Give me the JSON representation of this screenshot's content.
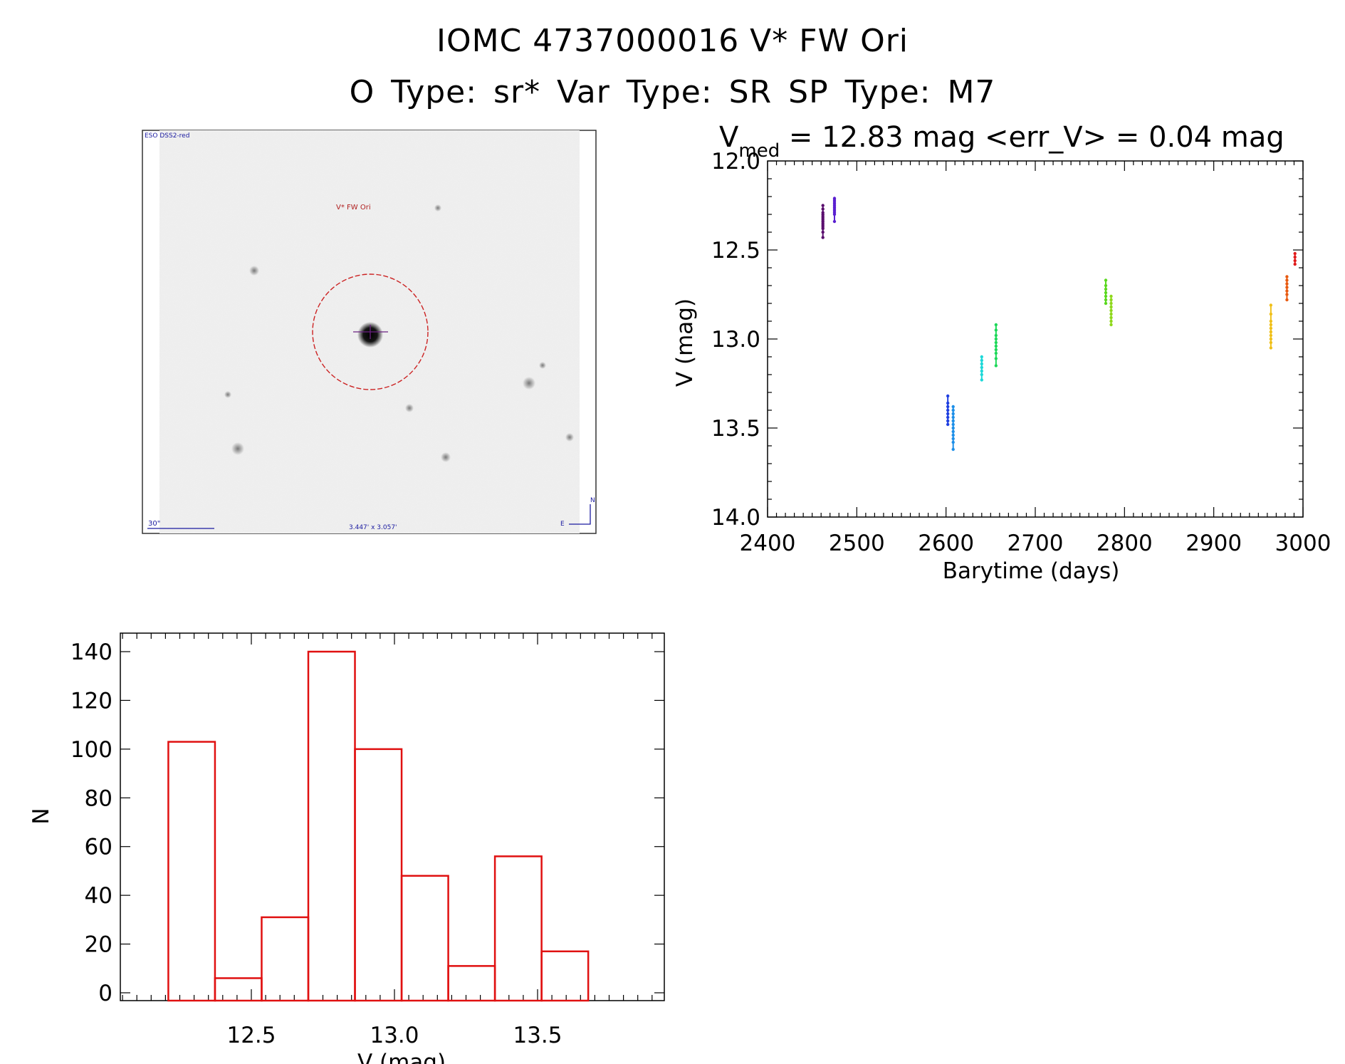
{
  "header": {
    "title_line1": "IOMC 4737000016    V* FW Ori",
    "title_line2": "O Type: sr*  Var Type: SR  SP Type: M7"
  },
  "finder": {
    "survey_label": "ESO DSS2-red",
    "object_label": "V* FW Ori",
    "scale_label": "30\"",
    "fov_label": "3.447' x 3.057'",
    "north_label": "N",
    "east_label": "E",
    "colors": {
      "circle": "#cc2222",
      "labels": "#1a1aa0",
      "object_label": "#b02020"
    }
  },
  "chart_data": [
    {
      "type": "scatter",
      "title_prefix": "V",
      "title_subscript": "med",
      "title_rest": " = 12.83 mag <err_V> = 0.04 mag",
      "xlabel": "Barytime (days)",
      "ylabel": "V (mag)",
      "xlim": [
        2400,
        3000
      ],
      "ylim": [
        14.0,
        12.0
      ],
      "xticks": [
        "2400",
        "2500",
        "2600",
        "2700",
        "2800",
        "2900",
        "3000"
      ],
      "yticks": [
        "12.0",
        "12.5",
        "13.0",
        "13.5",
        "14.0"
      ],
      "groups": [
        {
          "x": 2462,
          "y": [
            12.25,
            12.27,
            12.29,
            12.3,
            12.31,
            12.32,
            12.33,
            12.34,
            12.35,
            12.36,
            12.37,
            12.38,
            12.4,
            12.43
          ],
          "color": "#5a0f6e"
        },
        {
          "x": 2475,
          "y": [
            12.21,
            12.22,
            12.23,
            12.24,
            12.25,
            12.26,
            12.27,
            12.28,
            12.29,
            12.3,
            12.34
          ],
          "color": "#5a1fd0"
        },
        {
          "x": 2602,
          "y": [
            13.32,
            13.36,
            13.38,
            13.4,
            13.42,
            13.44,
            13.46,
            13.48
          ],
          "color": "#1f3fe0"
        },
        {
          "x": 2608,
          "y": [
            13.38,
            13.4,
            13.42,
            13.44,
            13.46,
            13.48,
            13.5,
            13.52,
            13.54,
            13.56,
            13.58,
            13.62
          ],
          "color": "#1d8fe8"
        },
        {
          "x": 2640,
          "y": [
            13.1,
            13.12,
            13.14,
            13.16,
            13.18,
            13.2,
            13.23
          ],
          "color": "#1ed8d8"
        },
        {
          "x": 2656,
          "y": [
            12.92,
            12.95,
            12.98,
            13.0,
            13.02,
            13.04,
            13.06,
            13.08,
            13.11,
            13.15
          ],
          "color": "#1fd85a"
        },
        {
          "x": 2779,
          "y": [
            12.67,
            12.7,
            12.72,
            12.74,
            12.76,
            12.78,
            12.8
          ],
          "color": "#5ad81f"
        },
        {
          "x": 2785,
          "y": [
            12.76,
            12.78,
            12.8,
            12.82,
            12.84,
            12.86,
            12.88,
            12.9,
            12.92
          ],
          "color": "#8ed81a"
        },
        {
          "x": 2964,
          "y": [
            12.81,
            12.86,
            12.9,
            12.92,
            12.94,
            12.96,
            12.98,
            13.0,
            13.02,
            13.05
          ],
          "color": "#f0c01a"
        },
        {
          "x": 2982,
          "y": [
            12.65,
            12.67,
            12.69,
            12.71,
            12.73,
            12.75,
            12.78
          ],
          "color": "#e85a10"
        },
        {
          "x": 2991,
          "y": [
            12.52,
            12.54,
            12.56,
            12.58
          ],
          "color": "#e01a1a"
        }
      ]
    },
    {
      "type": "bar",
      "xlabel": "V (mag)",
      "ylabel": "N",
      "xlim": [
        2.05,
        3.95
      ],
      "ylim": [
        -3,
        147
      ],
      "xtick_values": [
        12.5,
        13.0,
        13.5
      ],
      "xticks": [
        "12.5",
        "13.0",
        "13.5"
      ],
      "ytick_values": [
        0,
        20,
        40,
        60,
        80,
        100,
        120,
        140
      ],
      "yticks": [
        "0",
        "20",
        "40",
        "60",
        "80",
        "100",
        "120",
        "140"
      ],
      "bins": [
        {
          "x0": 12.21,
          "x1": 12.373,
          "count": 103
        },
        {
          "x0": 12.373,
          "x1": 12.536,
          "count": 6
        },
        {
          "x0": 12.536,
          "x1": 12.699,
          "count": 31
        },
        {
          "x0": 12.699,
          "x1": 12.862,
          "count": 140
        },
        {
          "x0": 12.862,
          "x1": 13.025,
          "count": 100
        },
        {
          "x0": 13.025,
          "x1": 13.188,
          "count": 48
        },
        {
          "x0": 13.188,
          "x1": 13.351,
          "count": 11
        },
        {
          "x0": 13.351,
          "x1": 13.514,
          "count": 56
        },
        {
          "x0": 13.514,
          "x1": 13.677,
          "count": 17
        }
      ],
      "bar_color": "#e01010"
    }
  ]
}
